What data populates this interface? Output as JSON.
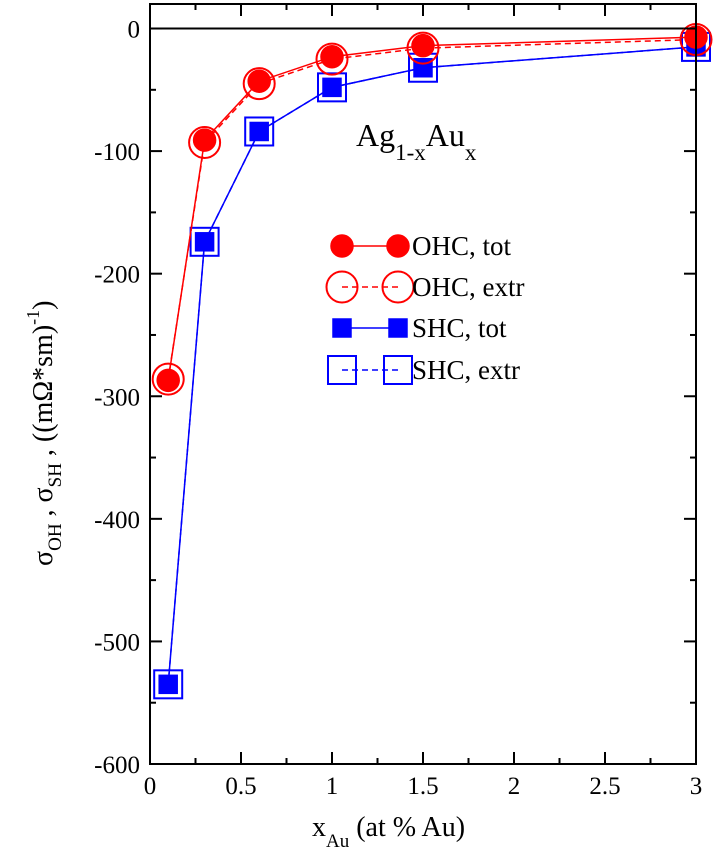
{
  "chart_data": {
    "type": "line",
    "title": {
      "base1": "Ag",
      "sub1": "1-x",
      "base2": "Au",
      "sub2": "x"
    },
    "xlabel": {
      "base": "x",
      "sub": "Au",
      "rest": " (at % Au)"
    },
    "ylabel": {
      "sigma1": "σ",
      "sub1": "OH",
      "sep": " , ",
      "sigma2": "σ",
      "sub2": "SH",
      "rest": " , ((mΩ*sm)",
      "sup": "-1",
      "close": ")"
    },
    "xlim": [
      0,
      3
    ],
    "ylim": [
      -600,
      20
    ],
    "x_ticks": [
      0,
      0.5,
      1,
      1.5,
      2,
      2.5,
      3
    ],
    "x_tick_labels": [
      "0",
      "0.5",
      "1",
      "1.5",
      "2",
      "2.5",
      "3"
    ],
    "y_ticks": [
      0,
      -100,
      -200,
      -300,
      -400,
      -500,
      -600
    ],
    "y_tick_labels": [
      "0",
      "-100",
      "-200",
      "-300",
      "-400",
      "-500",
      "-600"
    ],
    "zero_line": true,
    "legend_position": "center-right",
    "series": [
      {
        "name": "OHC, tot",
        "color": "#ff0000",
        "marker": "circle-filled",
        "line": "solid",
        "x": [
          0.1,
          0.3,
          0.6,
          1.0,
          1.5,
          3.0
        ],
        "values": [
          -287,
          -91,
          -43,
          -23,
          -14,
          -7
        ]
      },
      {
        "name": "OHC, extr",
        "color": "#ff0000",
        "marker": "circle-open",
        "line": "dashed",
        "x": [
          0.1,
          0.3,
          0.6,
          1.0,
          1.5,
          3.0
        ],
        "values": [
          -286,
          -93,
          -45,
          -25,
          -16,
          -9
        ]
      },
      {
        "name": "SHC, tot",
        "color": "#0000ff",
        "marker": "square-filled",
        "line": "solid",
        "x": [
          0.1,
          0.3,
          0.6,
          1.0,
          1.5,
          3.0
        ],
        "values": [
          -535,
          -174,
          -84,
          -48,
          -32,
          -15
        ]
      },
      {
        "name": "SHC, extr",
        "color": "#0000ff",
        "marker": "square-open",
        "line": "dashed",
        "x": [
          0.1,
          0.3,
          0.6,
          1.0,
          1.5,
          3.0
        ],
        "values": [
          -535,
          -174,
          -84,
          -48,
          -32,
          -15
        ]
      }
    ]
  }
}
